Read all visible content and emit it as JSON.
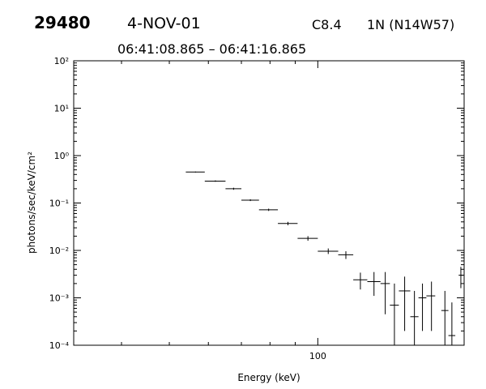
{
  "header": {
    "event_id": "29480",
    "date": "4-NOV-01",
    "goes_class": "C8.4",
    "location": "1N (N14W57)",
    "time_range": "06:41:08.865 – 06:41:16.865"
  },
  "chart_data": {
    "type": "scatter",
    "style": "error-bars",
    "xlabel": "Energy (keV)",
    "ylabel": "photons/sec/keV/cm²",
    "xscale": "log",
    "yscale": "log",
    "xlim": [
      32,
      198
    ],
    "ylim": [
      0.0001,
      100
    ],
    "x_tick_labels": [
      "100"
    ],
    "y_tick_labels": [
      "10⁻⁴",
      "10⁻³",
      "10⁻²",
      "10⁻¹",
      "10⁰",
      "10¹",
      "10²"
    ],
    "grid": false,
    "points": [
      {
        "x": 56.5,
        "xlo": 54,
        "xhi": 59,
        "y": 0.45,
        "ylo": 0.44,
        "yhi": 0.46
      },
      {
        "x": 62,
        "xlo": 59,
        "xhi": 65,
        "y": 0.29,
        "ylo": 0.28,
        "yhi": 0.3
      },
      {
        "x": 67.5,
        "xlo": 65,
        "xhi": 70,
        "y": 0.2,
        "ylo": 0.19,
        "yhi": 0.21
      },
      {
        "x": 73,
        "xlo": 70,
        "xhi": 76,
        "y": 0.115,
        "ylo": 0.11,
        "yhi": 0.12
      },
      {
        "x": 79.5,
        "xlo": 76,
        "xhi": 83,
        "y": 0.072,
        "ylo": 0.068,
        "yhi": 0.076
      },
      {
        "x": 87,
        "xlo": 83,
        "xhi": 91,
        "y": 0.037,
        "ylo": 0.034,
        "yhi": 0.04
      },
      {
        "x": 95.5,
        "xlo": 91,
        "xhi": 100,
        "y": 0.018,
        "ylo": 0.016,
        "yhi": 0.02
      },
      {
        "x": 105,
        "xlo": 100,
        "xhi": 110,
        "y": 0.0096,
        "ylo": 0.0084,
        "yhi": 0.011
      },
      {
        "x": 114,
        "xlo": 110,
        "xhi": 118,
        "y": 0.0081,
        "ylo": 0.0066,
        "yhi": 0.0096
      },
      {
        "x": 122,
        "xlo": 118,
        "xhi": 126,
        "y": 0.0024,
        "ylo": 0.0015,
        "yhi": 0.0034
      },
      {
        "x": 130,
        "xlo": 126,
        "xhi": 134,
        "y": 0.0022,
        "ylo": 0.0011,
        "yhi": 0.0035
      },
      {
        "x": 137,
        "xlo": 134,
        "xhi": 140,
        "y": 0.002,
        "ylo": 0.00045,
        "yhi": 0.0035
      },
      {
        "x": 143,
        "xlo": 140,
        "xhi": 146,
        "y": 0.0007,
        "ylo": 0.0001,
        "yhi": 0.002
      },
      {
        "x": 150,
        "xlo": 146,
        "xhi": 154,
        "y": 0.0014,
        "ylo": 0.0002,
        "yhi": 0.0028
      },
      {
        "x": 157,
        "xlo": 154,
        "xhi": 160,
        "y": 0.0004,
        "ylo": 0.0001,
        "yhi": 0.0014
      },
      {
        "x": 163,
        "xlo": 160,
        "xhi": 166,
        "y": 0.001,
        "ylo": 0.0002,
        "yhi": 0.002
      },
      {
        "x": 170,
        "xlo": 166,
        "xhi": 173,
        "y": 0.0011,
        "ylo": 0.0002,
        "yhi": 0.0022
      },
      {
        "x": 181,
        "xlo": 178,
        "xhi": 184,
        "y": 0.00054,
        "ylo": 0.0001,
        "yhi": 0.0014
      },
      {
        "x": 187,
        "xlo": 184,
        "xhi": 190,
        "y": 0.00016,
        "ylo": 0.0001,
        "yhi": 0.0008
      },
      {
        "x": 195,
        "xlo": 193,
        "xhi": 197,
        "y": 0.003,
        "ylo": 0.0016,
        "yhi": 0.0045
      }
    ]
  }
}
